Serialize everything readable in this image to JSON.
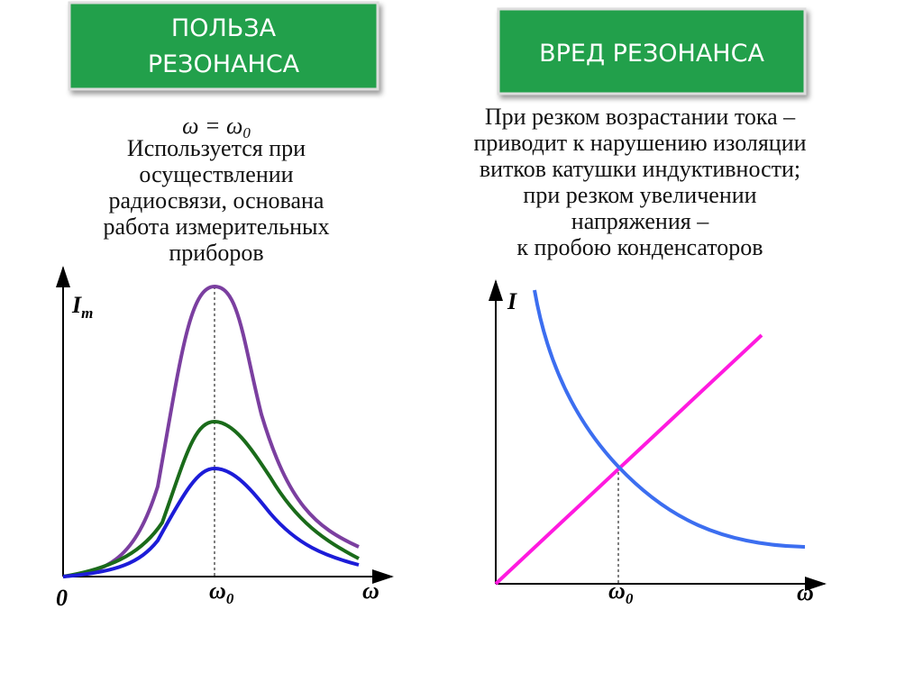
{
  "left": {
    "button": [
      "ПОЛЬЗА",
      "РЕЗОНАНСА"
    ],
    "formula": {
      "main": "ω = ω",
      "sub": "0"
    },
    "text": [
      "Используется при",
      "осуществлении",
      "радиосвязи, основана",
      "работа измерительных",
      "приборов"
    ],
    "graph": {
      "y_label": {
        "main": "I",
        "sub": "m"
      },
      "origin": "0",
      "x_mark": {
        "main": "ω",
        "sub": "0"
      },
      "x_label": "ω"
    }
  },
  "right": {
    "button": "ВРЕД РЕЗОНАНСА",
    "text": [
      "При резком возрастании тока –",
      "приводит к нарушению изоляции",
      "витков катушки    индуктивности;",
      "при  резком  увеличении",
      "напряжения  –",
      "к пробою конденсаторов"
    ],
    "graph": {
      "y_label": "I",
      "x_mark": {
        "main": "ω",
        "sub": "0"
      },
      "x_label": "ω"
    }
  }
}
